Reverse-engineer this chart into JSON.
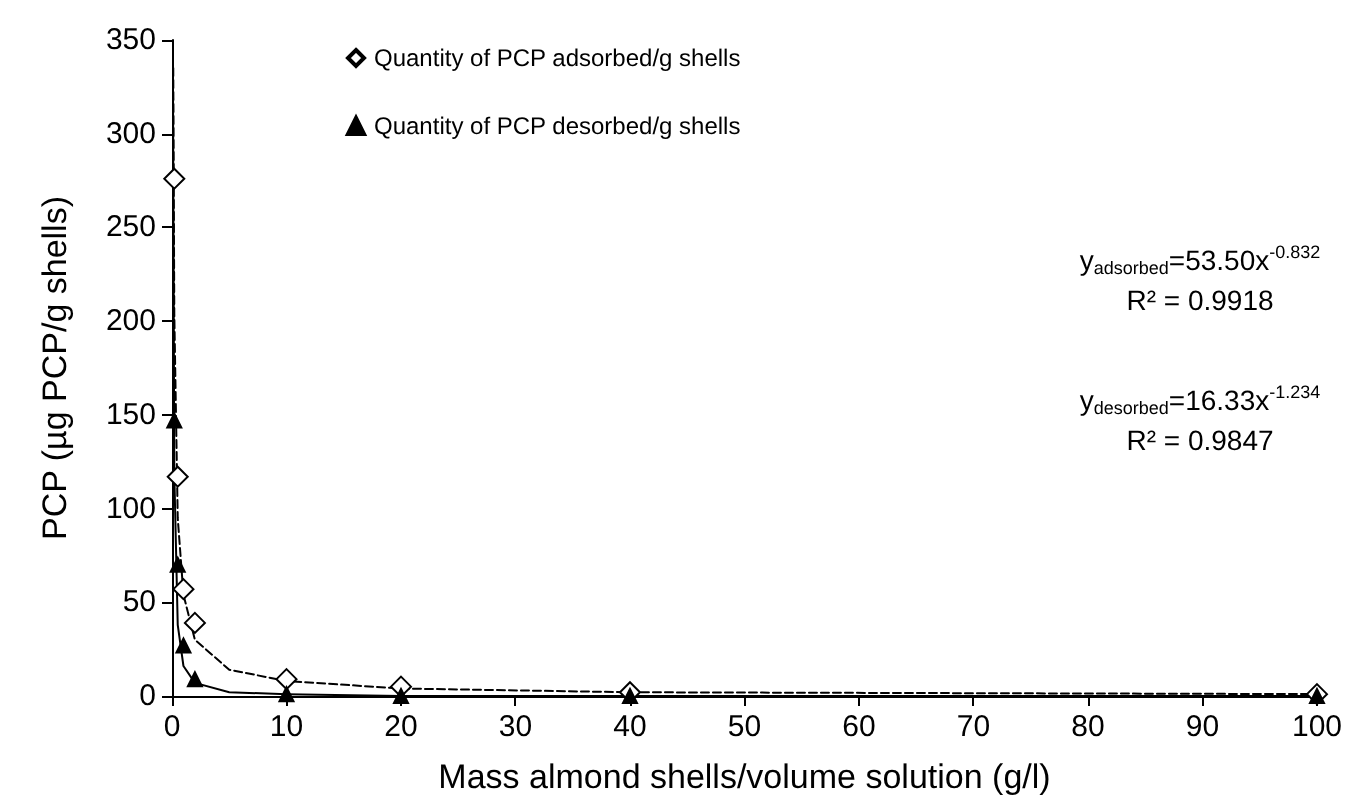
{
  "chart_data": {
    "type": "scatter",
    "xlabel": "Mass almond shells/volume solution (g/l)",
    "ylabel": "PCP (µg PCP/g shells)",
    "xlim": [
      0,
      100
    ],
    "xticks": [
      0,
      10,
      20,
      30,
      40,
      50,
      60,
      70,
      80,
      90,
      100
    ],
    "ylim": [
      0,
      350
    ],
    "yticks": [
      0,
      50,
      100,
      150,
      200,
      250,
      300,
      350
    ],
    "grid": false,
    "legend": "top",
    "series": [
      {
        "name": "Quantity of PCP adsorbed/g shells",
        "marker": "diamond",
        "color": "#000000",
        "x": [
          0.2,
          0.5,
          1,
          2,
          10,
          20,
          40,
          100
        ],
        "values": [
          276,
          117,
          57,
          39,
          9,
          5,
          2,
          1
        ]
      },
      {
        "name": "Quantity of PCP desorbed/g shells",
        "marker": "triangle",
        "color": "#000000",
        "x": [
          0.2,
          0.5,
          1,
          2,
          10,
          20,
          40,
          100
        ],
        "values": [
          147,
          70,
          27,
          9,
          1,
          0,
          0,
          0
        ]
      },
      {
        "type": "line",
        "line_style": "dashed",
        "color": "#000000",
        "x": [
          0.11,
          0.2,
          0.5,
          1,
          2,
          5,
          10,
          20,
          40,
          100
        ],
        "values": [
          335,
          204,
          95,
          54,
          30,
          14,
          8,
          4,
          2,
          1
        ]
      },
      {
        "type": "line",
        "line_style": "solid",
        "color": "#000000",
        "x": [
          0.09,
          0.2,
          0.5,
          1,
          2,
          5,
          10,
          20,
          100
        ],
        "values": [
          319,
          119,
          38,
          16,
          7,
          2,
          1,
          0,
          0
        ]
      }
    ],
    "annotations": [
      "y$_{adsorbed}$=53.50x$^{-0.832}$",
      "R² = 0.9918",
      "y$_{desorbed}$=16.33x$^{-1.234}$",
      "R² = 0.9847"
    ]
  }
}
